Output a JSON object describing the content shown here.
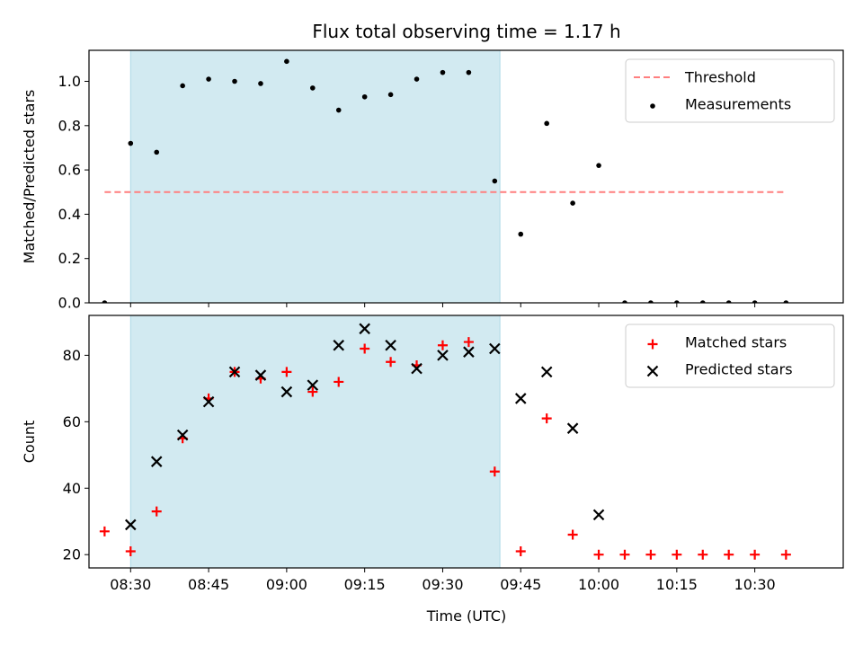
{
  "chart_data": {
    "type": "scatter",
    "title": "Flux total observing time = 1.17 h",
    "xlabel": "Time (UTC)",
    "x_tick_labels": [
      "08:30",
      "08:45",
      "09:00",
      "09:15",
      "09:30",
      "09:45",
      "10:00",
      "10:15",
      "10:30"
    ],
    "x_tick_minutes": [
      510,
      525,
      540,
      555,
      570,
      585,
      600,
      615,
      630
    ],
    "xlim_minutes": [
      502,
      647
    ],
    "shaded_interval_minutes": [
      510,
      581
    ],
    "colors": {
      "shade": "#add8e6",
      "threshold": "#ff7f7f",
      "measurement": "#000000",
      "matched": "#ff0000",
      "predicted": "#000000"
    },
    "panels": [
      {
        "name": "ratio",
        "ylabel": "Matched/Predicted stars",
        "ylim": [
          0,
          1.14
        ],
        "y_ticks": [
          0.0,
          0.2,
          0.4,
          0.6,
          0.8,
          1.0
        ],
        "y_tick_labels": [
          "0.0",
          "0.2",
          "0.4",
          "0.6",
          "0.8",
          "1.0"
        ],
        "legend_position": "top-right",
        "threshold": {
          "name": "Threshold",
          "value": 0.5,
          "x_range_minutes": [
            505,
            636
          ]
        },
        "series": [
          {
            "name": "Measurements",
            "marker": "dot",
            "x_minutes": [
              505,
              510,
              515,
              520,
              525,
              530,
              535,
              540,
              545,
              550,
              555,
              560,
              565,
              570,
              575,
              580,
              585,
              590,
              595,
              600,
              605,
              610,
              615,
              620,
              625,
              630,
              636
            ],
            "y": [
              0.0,
              0.72,
              0.68,
              0.98,
              1.01,
              1.0,
              0.99,
              1.09,
              0.97,
              0.87,
              0.93,
              0.94,
              1.01,
              1.04,
              1.04,
              0.55,
              0.31,
              0.81,
              0.45,
              0.62,
              0.0,
              0.0,
              0.0,
              0.0,
              0.0,
              0.0,
              0.0
            ]
          }
        ]
      },
      {
        "name": "count",
        "ylabel": "Count",
        "ylim": [
          16,
          92
        ],
        "y_ticks": [
          20,
          40,
          60,
          80
        ],
        "y_tick_labels": [
          "20",
          "40",
          "60",
          "80"
        ],
        "legend_position": "top-right",
        "series": [
          {
            "name": "Matched stars",
            "marker": "plus",
            "x_minutes": [
              505,
              510,
              515,
              520,
              525,
              530,
              535,
              540,
              545,
              550,
              555,
              560,
              565,
              570,
              575,
              580,
              585,
              590,
              595,
              600,
              605,
              610,
              615,
              620,
              625,
              630,
              636
            ],
            "y": [
              27,
              21,
              33,
              55,
              67,
              75,
              73,
              75,
              69,
              72,
              82,
              78,
              77,
              83,
              84,
              45,
              21,
              61,
              26,
              20,
              20,
              20,
              20,
              20,
              20,
              20,
              20
            ]
          },
          {
            "name": "Predicted stars",
            "marker": "cross",
            "x_minutes": [
              510,
              515,
              520,
              525,
              530,
              535,
              540,
              545,
              550,
              555,
              560,
              565,
              570,
              575,
              580,
              585,
              590,
              595,
              600
            ],
            "y": [
              29,
              48,
              56,
              66,
              75,
              74,
              69,
              71,
              83,
              88,
              83,
              76,
              80,
              81,
              82,
              67,
              75,
              58,
              32
            ]
          }
        ]
      }
    ]
  }
}
